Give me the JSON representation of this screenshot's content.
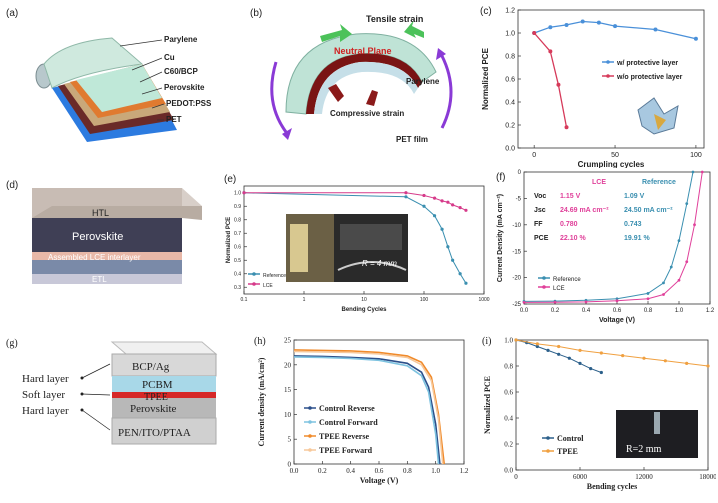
{
  "panels": {
    "a": {
      "label": "(a)",
      "layers": [
        "Parylene",
        "Cu",
        "C60/BCP",
        "Perovskite",
        "PEDOT:PSS",
        "PET"
      ]
    },
    "b": {
      "label": "(b)",
      "tensile": "Tensile strain",
      "neutral": "Neutral Plane",
      "parylene": "Parylene",
      "compressive": "Compressive strain",
      "pet": "PET film"
    },
    "d": {
      "label": "(d)",
      "layers": [
        "HTL",
        "Perovskite",
        "Assembled LCE interlayer",
        "ETL"
      ]
    },
    "f": {
      "table": {
        "headers": [
          "LCE",
          "Reference"
        ],
        "rows": [
          {
            "name": "Voc",
            "lce": "1.15 V",
            "ref": "1.09 V"
          },
          {
            "name": "Jsc",
            "lce": "24.69 mA cm⁻²",
            "ref": "24.50 mA cm⁻²"
          },
          {
            "name": "FF",
            "lce": "0.780",
            "ref": "0.743"
          },
          {
            "name": "PCE",
            "lce": "22.10 %",
            "ref": "19.91 %"
          }
        ]
      }
    },
    "g": {
      "label": "(g)",
      "layers": [
        "BCP/Ag",
        "PCBM",
        "TPEE",
        "Perovskite",
        "PEN/ITO/PTAA"
      ],
      "annotations": [
        "Hard layer",
        "Soft layer",
        "Hard layer"
      ]
    },
    "i": {
      "inset_label": "R=2 mm"
    }
  },
  "chart_data": [
    {
      "id": "c",
      "label": "(c)",
      "type": "line",
      "xlabel": "Crumpling cycles",
      "ylabel": "Normalized PCE",
      "xlim": [
        -10,
        105
      ],
      "ylim": [
        0.0,
        1.2
      ],
      "xticks": [
        0,
        50,
        100
      ],
      "yticks": [
        0.0,
        0.2,
        0.4,
        0.6,
        0.8,
        1.0,
        1.2
      ],
      "series": [
        {
          "name": "w/ protective layer",
          "color": "#4a90d9",
          "x": [
            0,
            10,
            20,
            30,
            40,
            50,
            75,
            100
          ],
          "y": [
            1.0,
            1.05,
            1.07,
            1.1,
            1.09,
            1.06,
            1.03,
            0.95
          ]
        },
        {
          "name": "w/o protective layer",
          "color": "#d63a5a",
          "x": [
            0,
            10,
            15,
            20
          ],
          "y": [
            1.0,
            0.84,
            0.55,
            0.18
          ]
        }
      ]
    },
    {
      "id": "e",
      "label": "(e)",
      "type": "line",
      "xlabel": "Bending Cycles",
      "ylabel": "Normalized PCE",
      "xscale": "log",
      "xticks": [
        0.1,
        1,
        10,
        100,
        1000
      ],
      "ytick_labels": [
        "1.0",
        "0.9",
        "0.8",
        "0.7",
        "0.6",
        "0.5",
        "0.4",
        "0.3"
      ],
      "yticks": [
        1.0,
        0.9,
        0.8,
        0.7,
        0.6,
        0.5,
        0.4,
        0.3
      ],
      "ylim": [
        0.25,
        1.05
      ],
      "inset_label": "R = 4 mm",
      "series": [
        {
          "name": "Reference",
          "color": "#3a8fb0",
          "x": [
            0.1,
            50,
            100,
            150,
            200,
            250,
            300,
            400,
            500
          ],
          "y": [
            1.0,
            0.97,
            0.9,
            0.83,
            0.73,
            0.6,
            0.5,
            0.4,
            0.33
          ]
        },
        {
          "name": "LCE",
          "color": "#d63a8a",
          "x": [
            0.1,
            50,
            100,
            150,
            200,
            250,
            300,
            400,
            500
          ],
          "y": [
            1.0,
            1.0,
            0.98,
            0.96,
            0.94,
            0.93,
            0.91,
            0.89,
            0.87
          ]
        }
      ]
    },
    {
      "id": "f",
      "label": "(f)",
      "type": "line",
      "xlabel": "Voltage (V)",
      "ylabel": "Current Density (mA cm⁻²)",
      "xlim": [
        0.0,
        1.2
      ],
      "ylim": [
        -25,
        0
      ],
      "xticks": [
        0.0,
        0.2,
        0.4,
        0.6,
        0.8,
        1.0,
        1.2
      ],
      "yticks": [
        0,
        -5,
        -10,
        -15,
        -20,
        -25
      ],
      "series": [
        {
          "name": "Reference",
          "color": "#3a8fb0",
          "x": [
            0.0,
            0.2,
            0.4,
            0.6,
            0.8,
            0.9,
            0.95,
            1.0,
            1.05,
            1.09
          ],
          "y": [
            -24.5,
            -24.45,
            -24.3,
            -24.0,
            -23.0,
            -21.0,
            -18.0,
            -13.0,
            -6.0,
            0.0
          ]
        },
        {
          "name": "LCE",
          "color": "#e0409a",
          "x": [
            0.0,
            0.2,
            0.4,
            0.6,
            0.8,
            0.9,
            1.0,
            1.05,
            1.1,
            1.15
          ],
          "y": [
            -24.7,
            -24.65,
            -24.6,
            -24.4,
            -24.0,
            -23.2,
            -20.5,
            -17.0,
            -10.0,
            0.0
          ]
        }
      ]
    },
    {
      "id": "h",
      "label": "(h)",
      "type": "line",
      "xlabel": "Voltage (V)",
      "ylabel": "Current density (mA/cm²)",
      "xlim": [
        0.0,
        1.2
      ],
      "ylim": [
        0,
        25
      ],
      "xticks": [
        0.0,
        0.2,
        0.4,
        0.6,
        0.8,
        1.0,
        1.2
      ],
      "yticks": [
        0,
        5,
        10,
        15,
        20,
        25
      ],
      "series": [
        {
          "name": "Control Reverse",
          "color": "#2b4f8a",
          "x": [
            0.0,
            0.2,
            0.4,
            0.6,
            0.8,
            0.9,
            0.95,
            1.0,
            1.03
          ],
          "y": [
            21.8,
            21.7,
            21.5,
            21.2,
            20.3,
            18.5,
            15.5,
            8.0,
            0.0
          ]
        },
        {
          "name": "Control Forward",
          "color": "#7ec3e0",
          "x": [
            0.0,
            0.2,
            0.4,
            0.6,
            0.8,
            0.9,
            0.95,
            1.0,
            1.02
          ],
          "y": [
            21.6,
            21.5,
            21.3,
            20.9,
            19.8,
            17.8,
            14.5,
            6.0,
            0.0
          ]
        },
        {
          "name": "TPEE Reverse",
          "color": "#f08a2a",
          "x": [
            0.0,
            0.2,
            0.4,
            0.6,
            0.8,
            0.9,
            0.97,
            1.02,
            1.06
          ],
          "y": [
            23.0,
            22.9,
            22.8,
            22.5,
            21.8,
            20.5,
            17.5,
            10.0,
            0.0
          ]
        },
        {
          "name": "TPEE Forward",
          "color": "#f7c89a",
          "x": [
            0.0,
            0.2,
            0.4,
            0.6,
            0.8,
            0.9,
            0.97,
            1.02,
            1.05
          ],
          "y": [
            22.7,
            22.6,
            22.5,
            22.2,
            21.5,
            20.0,
            16.8,
            9.0,
            0.0
          ]
        }
      ]
    },
    {
      "id": "i",
      "label": "(i)",
      "type": "line",
      "xlabel": "Bending cycles",
      "ylabel": "Normalized PCE",
      "xlim": [
        0,
        18000
      ],
      "ylim": [
        0.0,
        1.0
      ],
      "xticks": [
        0,
        6000,
        12000,
        18000
      ],
      "yticks": [
        0.0,
        0.2,
        0.4,
        0.6,
        0.8,
        1.0
      ],
      "series": [
        {
          "name": "Control",
          "color": "#2b5f8a",
          "x": [
            0,
            1000,
            2000,
            3000,
            4000,
            5000,
            6000,
            7000,
            8000
          ],
          "y": [
            1.0,
            0.98,
            0.95,
            0.92,
            0.89,
            0.86,
            0.82,
            0.78,
            0.75
          ]
        },
        {
          "name": "TPEE",
          "color": "#f0a040",
          "x": [
            0,
            2000,
            4000,
            6000,
            8000,
            10000,
            12000,
            14000,
            16000,
            18000
          ],
          "y": [
            1.0,
            0.97,
            0.95,
            0.92,
            0.9,
            0.88,
            0.86,
            0.84,
            0.82,
            0.8
          ]
        }
      ]
    }
  ]
}
